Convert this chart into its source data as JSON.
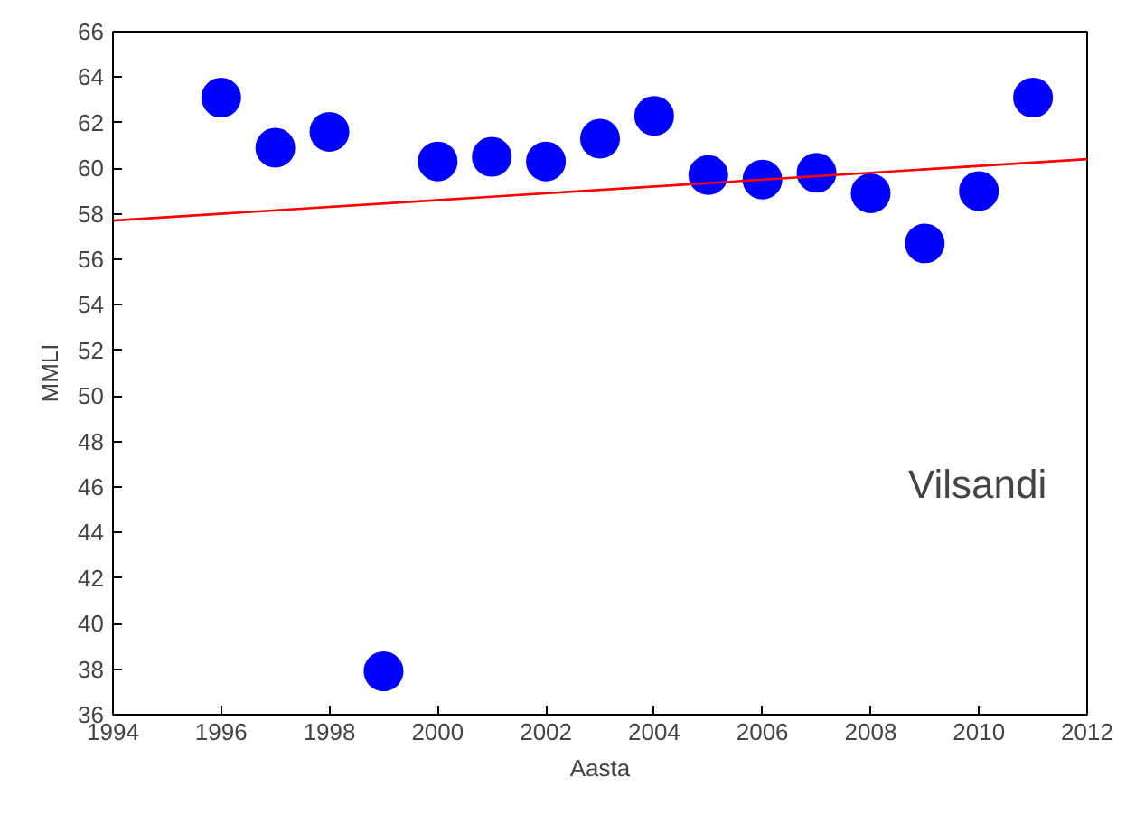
{
  "chart_data": {
    "type": "scatter",
    "xlabel": "Aasta",
    "ylabel": "MMLI",
    "xlim": [
      1994,
      2012
    ],
    "xticks": [
      1994,
      1996,
      1998,
      2000,
      2002,
      2004,
      2006,
      2008,
      2010,
      2012
    ],
    "ylim": [
      36,
      66
    ],
    "yticks": [
      36,
      38,
      40,
      42,
      44,
      46,
      48,
      50,
      52,
      54,
      56,
      58,
      60,
      62,
      64,
      66
    ],
    "grid": false,
    "series": [
      {
        "marker": "circle",
        "color": "#0000ff",
        "x": [
          1996,
          1997,
          1998,
          1999,
          2000,
          2001,
          2002,
          2003,
          2004,
          2005,
          2006,
          2007,
          2008,
          2009,
          2010,
          2011
        ],
        "values": [
          63.1,
          60.9,
          61.6,
          37.9,
          60.3,
          60.5,
          60.3,
          61.3,
          62.3,
          59.7,
          59.5,
          59.8,
          58.9,
          56.7,
          59.0,
          63.1
        ]
      },
      {
        "type": "line",
        "color": "#ff0000",
        "x": [
          1994,
          2012
        ],
        "values": [
          57.7,
          60.4
        ]
      }
    ],
    "annotations": [
      "Vilsandi"
    ]
  }
}
